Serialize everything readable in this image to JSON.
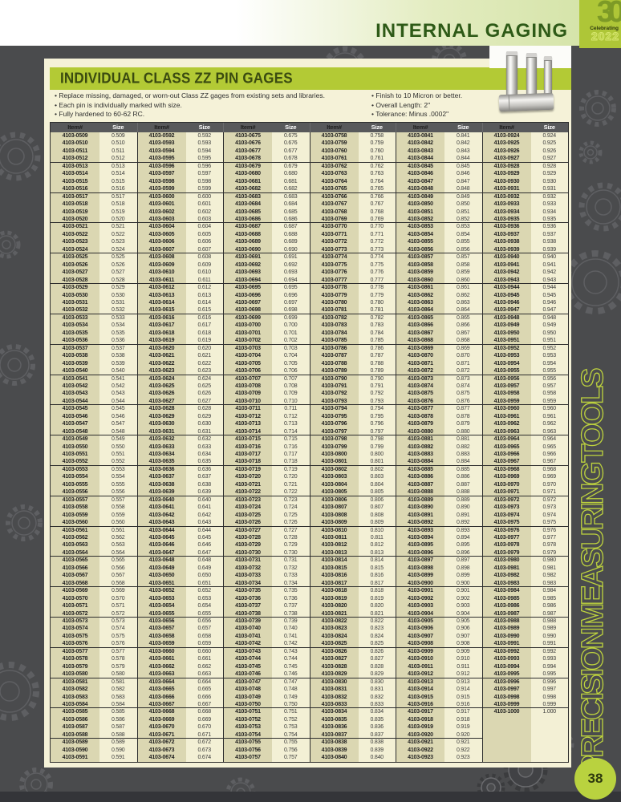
{
  "header": {
    "title": "INTERNAL GAGING",
    "anniversary_badge": {
      "number": "30",
      "caption": "Celebrating",
      "year": "2022"
    }
  },
  "section": {
    "title": "INDIVIDUAL CLASS ZZ PIN GAGES"
  },
  "features_left": [
    "Replace missing, damaged, or worn-out Class ZZ gages from existing sets and libraries.",
    "Each pin is individually marked with size.",
    "Fully hardened to 60-62 RC."
  ],
  "features_right": [
    "Finish to 10 Micron or better.",
    "Overall Length: 2\"",
    "Tolerance: Minus .0002\""
  ],
  "table": {
    "item_header": "Item#",
    "size_header": "Size",
    "item_prefix": "4103-",
    "rows_per_column": 83,
    "row_group_size": 4,
    "column_groups": [
      {
        "first_item": "4103-0509",
        "first_size": "0.509",
        "last_item": "4103-0591",
        "last_size": "0.591",
        "start": 509,
        "end": 591
      },
      {
        "first_item": "4103-0592",
        "first_size": "0.592",
        "last_item": "4103-0674",
        "last_size": "0.674",
        "start": 592,
        "end": 674
      },
      {
        "first_item": "4103-0675",
        "first_size": "0.675",
        "last_item": "4103-0757",
        "last_size": "0.757",
        "start": 675,
        "end": 757
      },
      {
        "first_item": "4103-0758",
        "first_size": "0.758",
        "last_item": "4103-0840",
        "last_size": "0.840",
        "start": 758,
        "end": 840
      },
      {
        "first_item": "4103-0841",
        "first_size": "0.841",
        "last_item": "4103-0923",
        "last_size": "0.923",
        "start": 841,
        "end": 923
      },
      {
        "first_item": "4103-0924",
        "first_size": "0.924",
        "last_item": "4103-1000",
        "last_size": "1.000",
        "start": 924,
        "end": 1000
      }
    ]
  },
  "sidebar": {
    "vertical_label": "PRECISION MEASURING TOOLS"
  },
  "footer": {
    "page_number": "38"
  },
  "colors": {
    "accent_green": "#b3ca35",
    "dark_green_title": "#2e5a17",
    "section_title_olive": "#3a4a10",
    "page_background": "#4a4b4d",
    "card_cream": "#f5f2d8",
    "item_column_khaki": "#dbd7b2",
    "size_column_cream": "#f3f0d5",
    "table_header_gray": "#58595b",
    "badge_green": "#aec637",
    "vertical_label_green": "#bdd23e"
  }
}
